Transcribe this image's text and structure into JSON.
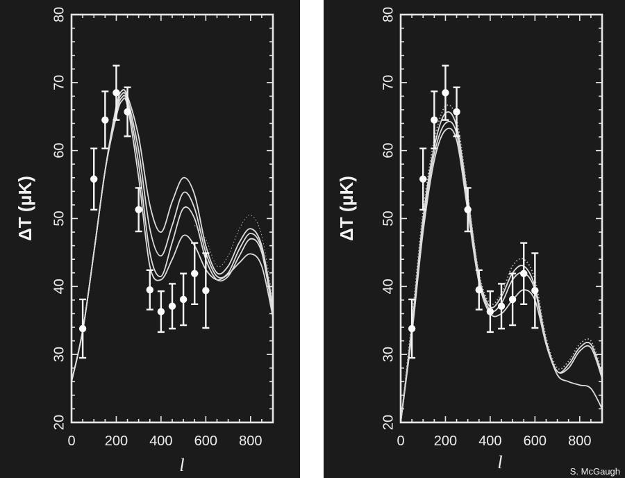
{
  "credit": "S. McGaugh",
  "colors": {
    "background": "#1b1b1b",
    "foreground": "#f2f2f2",
    "page": "#ffffff"
  },
  "chart_data": [
    {
      "type": "line",
      "title": "",
      "xlabel": "l",
      "ylabel": "ΔT (μK)",
      "xlim": [
        0,
        900
      ],
      "ylim": [
        20,
        80
      ],
      "x_ticks": [
        "0",
        "200",
        "400",
        "600",
        "800"
      ],
      "y_ticks": [
        "20",
        "30",
        "40",
        "50",
        "60",
        "70",
        "80"
      ],
      "grid": false,
      "points": [
        {
          "x": 50,
          "y": 33.8,
          "err": 4.3
        },
        {
          "x": 100,
          "y": 55.8,
          "err": 4.5
        },
        {
          "x": 150,
          "y": 64.5,
          "err": 4.2
        },
        {
          "x": 200,
          "y": 68.5,
          "err": 4.0
        },
        {
          "x": 250,
          "y": 65.7,
          "err": 3.6
        },
        {
          "x": 300,
          "y": 51.3,
          "err": 3.2
        },
        {
          "x": 350,
          "y": 39.5,
          "err": 2.9
        },
        {
          "x": 400,
          "y": 36.3,
          "err": 3.0
        },
        {
          "x": 450,
          "y": 37.1,
          "err": 3.3
        },
        {
          "x": 500,
          "y": 38.1,
          "err": 3.8
        },
        {
          "x": 550,
          "y": 41.9,
          "err": 4.5
        },
        {
          "x": 600,
          "y": 39.4,
          "err": 5.5
        }
      ],
      "series": [
        {
          "style": "solid",
          "x": [
            0,
            50,
            100,
            150,
            200,
            225,
            250,
            300,
            350,
            400,
            450,
            500,
            550,
            600,
            650,
            700,
            750,
            800,
            850,
            900
          ],
          "y": [
            26,
            33.5,
            45,
            57,
            66.5,
            68.8,
            68,
            62,
            52,
            48,
            52.5,
            56,
            53.5,
            46,
            42,
            43,
            46.5,
            48.5,
            46,
            37
          ]
        },
        {
          "style": "solid",
          "x": [
            0,
            50,
            100,
            150,
            200,
            225,
            250,
            300,
            350,
            400,
            450,
            500,
            550,
            600,
            650,
            700,
            750,
            800,
            850,
            900
          ],
          "y": [
            26,
            33.5,
            45,
            57,
            66,
            68.3,
            67.5,
            60,
            48.5,
            44.5,
            49,
            53.8,
            51.5,
            45,
            41.5,
            42,
            45.5,
            47.8,
            45.5,
            36.5
          ]
        },
        {
          "style": "solid",
          "x": [
            0,
            50,
            100,
            150,
            200,
            225,
            250,
            300,
            350,
            400,
            450,
            500,
            550,
            600,
            650,
            700,
            750,
            800,
            850,
            900
          ],
          "y": [
            26,
            33.5,
            45,
            57,
            65.5,
            67.8,
            67,
            58,
            45,
            41.5,
            46.5,
            51.5,
            50,
            44,
            41,
            41.5,
            44.5,
            47,
            45,
            36
          ]
        },
        {
          "style": "solid",
          "x": [
            0,
            50,
            100,
            150,
            200,
            225,
            250,
            300,
            350,
            400,
            450,
            500,
            550,
            600,
            650,
            700,
            750,
            800,
            850,
            900
          ],
          "y": [
            26,
            33.5,
            45,
            57,
            65,
            67.3,
            66.5,
            56,
            43,
            41,
            44,
            47.5,
            46,
            42.5,
            41,
            41.8,
            43.5,
            44.8,
            43,
            35.5
          ]
        },
        {
          "style": "dotted",
          "x": [
            550,
            600,
            650,
            700,
            750,
            800,
            850,
            900
          ],
          "y": [
            49,
            47,
            43,
            44.5,
            48.5,
            50.5,
            47.5,
            38
          ]
        }
      ]
    },
    {
      "type": "line",
      "title": "",
      "xlabel": "l",
      "ylabel": "ΔT (μK)",
      "xlim": [
        0,
        900
      ],
      "ylim": [
        20,
        80
      ],
      "x_ticks": [
        "0",
        "200",
        "400",
        "600",
        "800"
      ],
      "y_ticks": [
        "20",
        "30",
        "40",
        "50",
        "60",
        "70",
        "80"
      ],
      "grid": false,
      "points": [
        {
          "x": 50,
          "y": 33.8,
          "err": 4.3
        },
        {
          "x": 100,
          "y": 55.8,
          "err": 4.5
        },
        {
          "x": 150,
          "y": 64.5,
          "err": 4.2
        },
        {
          "x": 200,
          "y": 68.5,
          "err": 4.0
        },
        {
          "x": 250,
          "y": 65.7,
          "err": 3.6
        },
        {
          "x": 300,
          "y": 51.3,
          "err": 3.2
        },
        {
          "x": 350,
          "y": 39.5,
          "err": 2.9
        },
        {
          "x": 400,
          "y": 36.3,
          "err": 3.0
        },
        {
          "x": 450,
          "y": 37.1,
          "err": 3.3
        },
        {
          "x": 500,
          "y": 38.1,
          "err": 3.8
        },
        {
          "x": 550,
          "y": 41.9,
          "err": 4.5
        },
        {
          "x": 600,
          "y": 39.4,
          "err": 5.5
        }
      ],
      "series": [
        {
          "style": "solid",
          "x": [
            0,
            50,
            100,
            150,
            200,
            250,
            300,
            350,
            400,
            450,
            500,
            550,
            600,
            650,
            700,
            750,
            800,
            850,
            900
          ],
          "y": [
            20,
            34,
            50,
            60.5,
            65.5,
            63.5,
            53,
            41.5,
            37,
            38.5,
            42,
            43,
            40,
            32,
            27.5,
            28.5,
            31,
            31.5,
            27
          ]
        },
        {
          "style": "solid",
          "x": [
            0,
            50,
            100,
            150,
            200,
            250,
            300,
            350,
            400,
            450,
            500,
            550,
            600,
            650,
            700,
            750,
            800,
            850,
            900
          ],
          "y": [
            20,
            33.5,
            49,
            59.5,
            64,
            62.5,
            52,
            41,
            36.5,
            37.5,
            41,
            42,
            39.5,
            31.5,
            27.5,
            28,
            30.5,
            31,
            26.5
          ]
        },
        {
          "style": "solid",
          "x": [
            0,
            50,
            100,
            150,
            200,
            250,
            300,
            350,
            400,
            450,
            500,
            550,
            600,
            650,
            700,
            750,
            800,
            850,
            900
          ],
          "y": [
            20,
            33,
            48,
            58.5,
            63,
            61.5,
            51,
            40.5,
            36,
            36,
            38,
            39.5,
            38,
            31.5,
            27,
            26,
            25.5,
            25,
            22
          ]
        },
        {
          "style": "dotted",
          "x": [
            0,
            50,
            100,
            150,
            200,
            250,
            300,
            350,
            400,
            450,
            500,
            550,
            600,
            650,
            700,
            750,
            800,
            850,
            900
          ],
          "y": [
            20,
            35,
            51,
            61.5,
            66.5,
            64.5,
            53.5,
            42,
            37.5,
            39,
            43,
            44,
            41,
            32.5,
            28,
            29,
            31.5,
            32,
            27.5
          ]
        }
      ]
    }
  ]
}
